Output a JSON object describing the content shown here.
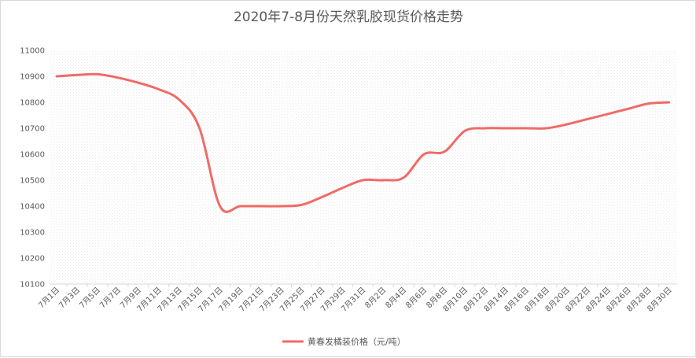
{
  "chart_data": {
    "type": "line",
    "title": "2020年7-8月份天然乳胶现货价格走势",
    "x": [
      "7月1日",
      "7月3日",
      "7月5日",
      "7月7日",
      "7月9日",
      "7月11日",
      "7月13日",
      "7月15日",
      "7月17日",
      "7月19日",
      "7月21日",
      "7月23日",
      "7月25日",
      "7月27日",
      "7月29日",
      "7月31日",
      "8月2日",
      "8月4日",
      "8月6日",
      "8月8日",
      "8月10日",
      "8月12日",
      "8月14日",
      "8月16日",
      "8月18日",
      "8月20日",
      "8月22日",
      "8月24日",
      "8月26日",
      "8月28日",
      "8月30日"
    ],
    "series": [
      {
        "name": "黄春发橘装价格（元/吨）",
        "color": "#ef6b66",
        "values": [
          10900,
          10905,
          10908,
          10895,
          10875,
          10850,
          10810,
          10700,
          10400,
          10400,
          10400,
          10400,
          10405,
          10435,
          10470,
          10500,
          10500,
          10510,
          10600,
          10610,
          10690,
          10700,
          10700,
          10700,
          10700,
          10715,
          10735,
          10755,
          10775,
          10795,
          10800
        ]
      }
    ],
    "ylim": [
      10100,
      11000
    ],
    "yticks": [
      "10100",
      "10200",
      "10300",
      "10400",
      "10500",
      "10600",
      "10700",
      "10800",
      "10900",
      "11000"
    ],
    "grid": true,
    "legend_position": "bottom"
  }
}
